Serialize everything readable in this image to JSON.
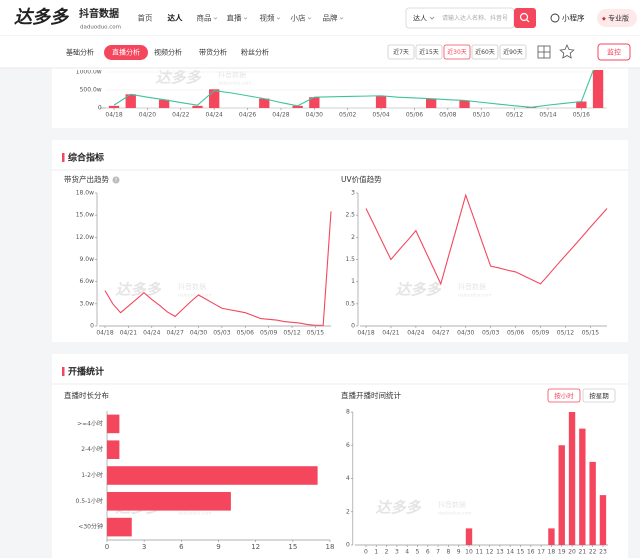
{
  "header": {
    "logo": "达多多",
    "logo_sub": "抖音数据",
    "logo_url": "daduoduo.com",
    "nav": [
      "首页",
      "达人",
      "商品",
      "直播",
      "视频",
      "小店",
      "品牌"
    ],
    "active_nav": 1,
    "search_scope": "达人",
    "search_placeholder": "请输入达人名称、抖音号",
    "mini_program": "小程序",
    "edition": "专业版"
  },
  "toolbar": {
    "tabs": [
      "基础分析",
      "直播分析",
      "视频分析",
      "带货分析",
      "粉丝分析"
    ],
    "active_tab": 1,
    "ranges": [
      "近7天",
      "近15天",
      "近30天",
      "近60天",
      "近90天"
    ],
    "active_range": 2,
    "button": "监控"
  },
  "sections": [
    {
      "title": "综合指标"
    },
    {
      "title": "开播统计"
    }
  ],
  "watermark": {
    "brand": "达多多",
    "sub": "抖音数据",
    "url": "daduoduo.com"
  },
  "chart_data": [
    {
      "type": "bar-line",
      "categories": [
        "04/18",
        null,
        "04/20",
        null,
        "04/22",
        null,
        "04/24",
        null,
        "04/26",
        null,
        "04/28",
        null,
        "04/30",
        null,
        "05/02",
        null,
        "05/04",
        null,
        "05/06",
        null,
        "05/08",
        null,
        "05/10",
        null,
        "05/12",
        null,
        "05/14",
        null,
        "05/16",
        null
      ],
      "series": [
        {
          "type": "bar",
          "color": "#f4475e",
          "values": [
            60,
            380,
            0,
            230,
            0,
            60,
            520,
            0,
            0,
            260,
            0,
            60,
            300,
            0,
            0,
            0,
            330,
            0,
            0,
            260,
            0,
            210,
            0,
            0,
            0,
            20,
            0,
            0,
            180,
            1400
          ]
        },
        {
          "type": "line",
          "color": "#3cc49a",
          "values": [
            80,
            380,
            300,
            230,
            150,
            80,
            480,
            420,
            340,
            260,
            150,
            60,
            300,
            310,
            320,
            330,
            340,
            300,
            280,
            260,
            230,
            210,
            160,
            110,
            60,
            20,
            80,
            130,
            180,
            1400
          ]
        }
      ],
      "ylim": [
        0,
        1500
      ],
      "yticks": [
        0,
        {
          "value": 500,
          "label": "500.0w"
        },
        {
          "value": 1000,
          "label": "1000.0w"
        }
      ],
      "grid": true
    },
    {
      "type": "line",
      "title": "带货产出趋势",
      "color": "#f4475e",
      "categories": [
        "04/18",
        null,
        null,
        "04/21",
        null,
        null,
        "04/24",
        null,
        null,
        "04/27",
        null,
        null,
        "04/30",
        null,
        null,
        "05/03",
        null,
        null,
        "05/06",
        null,
        null,
        "05/09",
        null,
        null,
        "05/12",
        null,
        null,
        "05/15",
        null,
        null
      ],
      "values": [
        4.8,
        3.0,
        1.8,
        2.7,
        3.6,
        4.5,
        3.6,
        2.8,
        1.9,
        1.3,
        2.3,
        3.3,
        4.2,
        3.6,
        3.0,
        2.4,
        2.2,
        2.0,
        1.8,
        1.4,
        1.0,
        0.9,
        0.8,
        0.6,
        0.5,
        0.4,
        0.2,
        0.1,
        0.1,
        15.5
      ],
      "ylim": [
        0,
        18
      ],
      "yticks": [
        0,
        {
          "value": 3,
          "label": "3.0w"
        },
        {
          "value": 6,
          "label": "6.0w"
        },
        {
          "value": 9,
          "label": "9.0w"
        },
        {
          "value": 12,
          "label": "12.0w"
        },
        {
          "value": 15,
          "label": "15.0w"
        },
        {
          "value": 18,
          "label": "18.0w"
        }
      ],
      "grid": false
    },
    {
      "type": "line",
      "title": "UV价值趋势",
      "color": "#f4475e",
      "categories": [
        "04/18",
        null,
        null,
        "04/21",
        null,
        null,
        "04/24",
        null,
        null,
        "04/27",
        null,
        null,
        "04/30",
        null,
        null,
        "05/03",
        null,
        null,
        "05/06",
        null,
        null,
        "05/09",
        null,
        null,
        "05/12",
        null,
        null,
        "05/15",
        null,
        null
      ],
      "values": [
        2.65,
        2.27,
        1.88,
        1.5,
        1.72,
        1.93,
        2.15,
        1.75,
        1.35,
        0.95,
        1.62,
        2.28,
        2.95,
        2.42,
        1.88,
        1.35,
        1.31,
        1.26,
        1.22,
        1.13,
        1.04,
        0.95,
        1.16,
        1.38,
        1.59,
        1.8,
        2.01,
        2.23,
        2.44,
        2.65
      ],
      "ylim": [
        0,
        3
      ],
      "yticks": [
        0,
        0.5,
        1,
        1.5,
        2,
        2.5,
        3
      ],
      "grid": false
    },
    {
      "type": "hbar",
      "title": "直播时长分布",
      "color": "#f4475e",
      "categories": [
        ">=4小时",
        "2-4小时",
        "1-2小时",
        "0.5-1小时",
        "<30分钟"
      ],
      "values": [
        1,
        1,
        17,
        10,
        2
      ],
      "xlim": [
        0,
        18
      ],
      "xticks": [
        0,
        3,
        6,
        9,
        12,
        15,
        18
      ],
      "grid": false
    },
    {
      "type": "bar",
      "title": "直播开播时间统计",
      "color": "#f4475e",
      "categories": [
        "0",
        "1",
        "2",
        "3",
        "4",
        "5",
        "6",
        "7",
        "8",
        "9",
        "10",
        "11",
        "12",
        "13",
        "14",
        "15",
        "16",
        "17",
        "18",
        "19",
        "20",
        "21",
        "22",
        "23"
      ],
      "values": [
        0,
        0,
        0,
        0,
        0,
        0,
        0,
        0,
        0,
        0,
        1,
        0,
        0,
        0,
        0,
        0,
        0,
        0,
        1,
        6,
        8,
        7,
        5,
        3
      ],
      "ylim": [
        0,
        8
      ],
      "yticks": [
        0,
        2,
        4,
        6,
        8
      ],
      "grid": false,
      "toggle": [
        "按小时",
        "按星期"
      ],
      "active_toggle": 0
    }
  ]
}
